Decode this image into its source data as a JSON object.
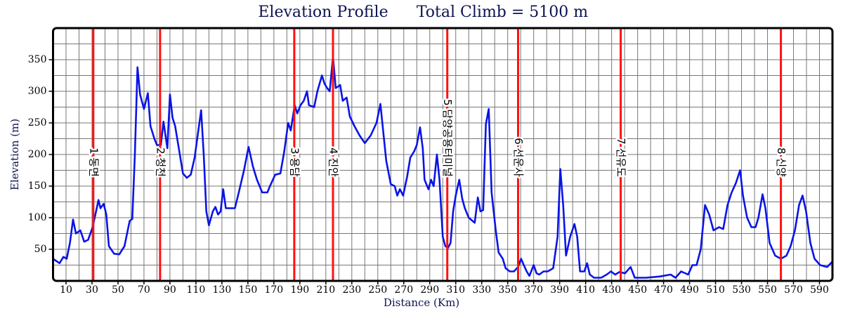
{
  "chart_data": {
    "type": "line",
    "title": "Elevation Profile",
    "subtitle": "Total Climb = 5100 m",
    "y_label": "Elevation (m)",
    "x_label": "Distance (Km)",
    "x": [
      0,
      5,
      8,
      10.5,
      13,
      15.4,
      17.6,
      21,
      24,
      27,
      30.5,
      35,
      36.5,
      39,
      41,
      43,
      47,
      51,
      55,
      59,
      61,
      63,
      65,
      67,
      70,
      73,
      75,
      78,
      80,
      83,
      85,
      88,
      90,
      92,
      94,
      98,
      100,
      103,
      106,
      109,
      113,
      114,
      116,
      118,
      120,
      123,
      125,
      127,
      129,
      131,
      133,
      136.5,
      140,
      143,
      147,
      150.5,
      154,
      157,
      161,
      165,
      167,
      171,
      175,
      178,
      181,
      183,
      186,
      188,
      190.5,
      193,
      195.5,
      197,
      201,
      203.5,
      207,
      209,
      211,
      213,
      215.5,
      217.6,
      221,
      223,
      226,
      228.5,
      232,
      236,
      240,
      244.5,
      249,
      252,
      254,
      256.5,
      260,
      263,
      265,
      267,
      269.5,
      272.6,
      275,
      278,
      280,
      282.5,
      284.6,
      286,
      289,
      291,
      293,
      295.5,
      297.5,
      300,
      302,
      304,
      306,
      308,
      310,
      312.7,
      315,
      317,
      320,
      324.6,
      327,
      329,
      331.1,
      333.2,
      335.4,
      337.6,
      340.8,
      343,
      346.2,
      348.4,
      351.6,
      354.8,
      358,
      360.3,
      362.4,
      364.6,
      366.7,
      370,
      372.2,
      374.3,
      377.6,
      380.8,
      385,
      388.4,
      390.5,
      392.7,
      394.9,
      398.1,
      401.4,
      403.5,
      405.7,
      409,
      411.1,
      413.2,
      416.5,
      421.9,
      426.2,
      429.5,
      432.7,
      436,
      440.3,
      444.6,
      447.8,
      456.5,
      467.3,
      475.4,
      479.2,
      483.5,
      488.9,
      492.2,
      495.4,
      498.6,
      501.9,
      505.1,
      508.4,
      512.7,
      515.9,
      519.2,
      522.4,
      525.7,
      528.9,
      531.1,
      534.3,
      537.6,
      540.8,
      543,
      546.2,
      548.4,
      551.6,
      555.9,
      560.3,
      564.6,
      567.8,
      571.1,
      574.3,
      577,
      579.7,
      583,
      586.2,
      590.5,
      595.9,
      599.7
    ],
    "values": [
      35,
      28,
      38,
      35,
      60,
      97,
      75,
      80,
      62,
      65,
      85,
      128,
      115,
      122,
      105,
      55,
      43,
      42,
      55,
      95,
      98,
      200,
      338,
      295,
      272,
      297,
      245,
      225,
      215,
      215,
      252,
      210,
      295,
      258,
      245,
      195,
      170,
      163,
      168,
      195,
      255,
      270,
      200,
      110,
      88,
      110,
      117,
      105,
      110,
      145,
      115,
      115,
      115,
      140,
      175,
      212,
      180,
      160,
      140,
      140,
      150,
      168,
      170,
      205,
      250,
      238,
      278,
      265,
      278,
      285,
      300,
      278,
      275,
      300,
      325,
      312,
      305,
      300,
      355,
      305,
      310,
      285,
      290,
      260,
      245,
      230,
      218,
      230,
      250,
      280,
      240,
      190,
      153,
      150,
      135,
      145,
      135,
      165,
      195,
      205,
      215,
      243,
      210,
      160,
      145,
      160,
      150,
      200,
      160,
      70,
      55,
      52,
      60,
      110,
      135,
      160,
      130,
      115,
      100,
      92,
      132,
      110,
      112,
      248,
      272,
      140,
      80,
      45,
      35,
      20,
      15,
      15,
      22,
      35,
      25,
      15,
      8,
      25,
      12,
      10,
      15,
      15,
      20,
      70,
      177,
      120,
      40,
      70,
      90,
      70,
      15,
      15,
      28,
      10,
      5,
      5,
      10,
      15,
      10,
      14,
      12,
      22,
      5,
      5,
      7,
      10,
      5,
      15,
      10,
      25,
      25,
      50,
      120,
      105,
      80,
      85,
      82,
      120,
      140,
      155,
      175,
      135,
      100,
      85,
      85,
      100,
      137,
      115,
      60,
      40,
      35,
      40,
      55,
      80,
      120,
      135,
      110,
      60,
      35,
      25,
      22,
      30
    ],
    "color": "#0a14e6",
    "xlim": [
      0,
      600
    ],
    "ylim": [
      0,
      400
    ],
    "xticks": [
      10,
      30,
      50,
      70,
      90,
      110,
      130,
      150,
      170,
      190,
      210,
      230,
      250,
      270,
      290,
      310,
      330,
      350,
      370,
      390,
      410,
      430,
      450,
      470,
      490,
      510,
      530,
      550,
      570,
      590
    ],
    "xgrid": [
      20,
      40,
      60,
      80,
      100,
      120,
      140,
      160,
      180,
      200,
      220,
      240,
      260,
      280,
      300,
      320,
      340,
      360,
      380,
      400,
      420,
      440,
      460,
      480,
      500,
      520,
      540,
      560,
      580
    ],
    "yticks": [
      50,
      100,
      150,
      200,
      250,
      300,
      350
    ],
    "ygrid": [
      25,
      75,
      125,
      175,
      225,
      275,
      325,
      375
    ],
    "grid": true,
    "waypoints_color": "#ff1010",
    "waypoints": [
      {
        "x": 31,
        "label": "1 동면"
      },
      {
        "x": 82.4,
        "label": "2 청천"
      },
      {
        "x": 185.7,
        "label": "3 용담"
      },
      {
        "x": 215.5,
        "label": "4 진안"
      },
      {
        "x": 303.5,
        "label": "5 담양공용터미널"
      },
      {
        "x": 358,
        "label": "6 선운사"
      },
      {
        "x": 437,
        "label": "7 선유도"
      },
      {
        "x": 560.3,
        "label": "8 신양"
      }
    ]
  }
}
